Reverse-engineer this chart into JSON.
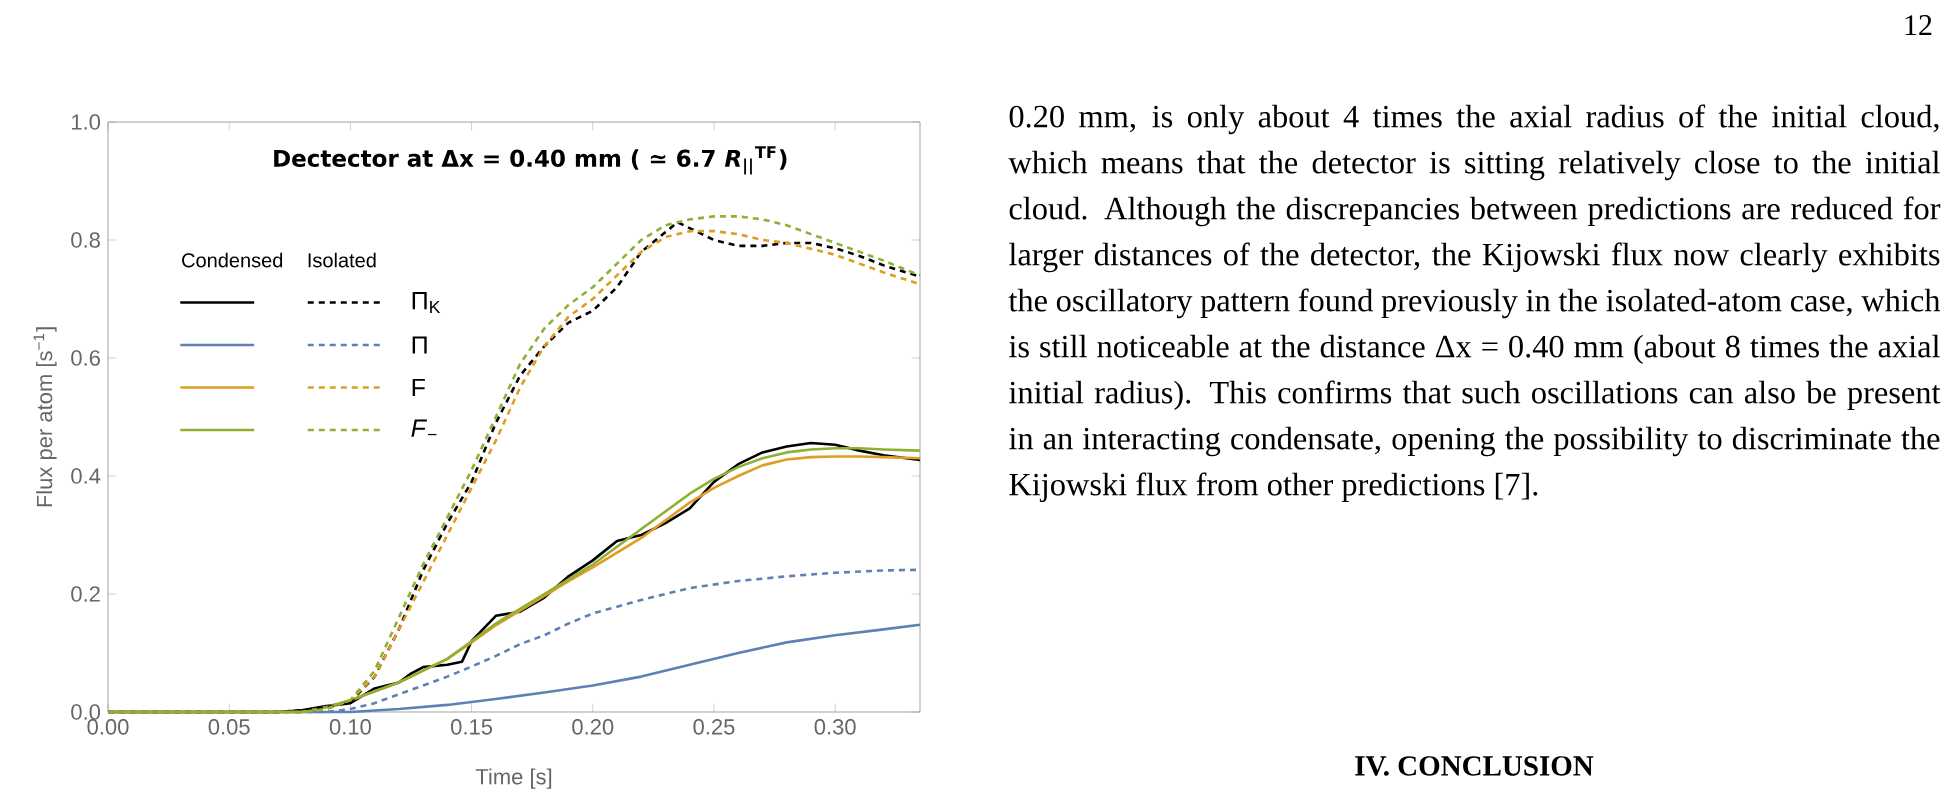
{
  "chart_data": {
    "type": "line",
    "title": "Dectector at Δx = 0.40 mm ( ≃ 6.7 *R*$_{||}$$^{TF}$)",
    "xlabel": "Time [s]",
    "ylabel": "Flux per atom [s$^{−1}$]",
    "xlim": [
      0,
      0.335
    ],
    "ylim": [
      0,
      1.0
    ],
    "xticks": [
      {
        "value": 0,
        "label": "0.00"
      },
      {
        "value": 0.05,
        "label": "0.05"
      },
      {
        "value": 0.1,
        "label": "0.10"
      },
      {
        "value": 0.15,
        "label": "0.15"
      },
      {
        "value": 0.2,
        "label": "0.20"
      },
      {
        "value": 0.25,
        "label": "0.25"
      },
      {
        "value": 0.3,
        "label": "0.30"
      }
    ],
    "yticks": [
      {
        "value": 0,
        "label": "0.0"
      },
      0.2,
      0.4,
      0.6,
      0.8,
      {
        "value": 1.0,
        "label": "1.0"
      }
    ],
    "legend": "top left",
    "series": [
      {
        "name": "Π$_{K}$",
        "color": "#000000",
        "line_style": "solid",
        "x": [
          0,
          0.07,
          0.08,
          0.09,
          0.1,
          0.11,
          0.12,
          0.125,
          0.13,
          0.14,
          0.146,
          0.15,
          0.16,
          0.17,
          0.18,
          0.19,
          0.2,
          0.21,
          0.22,
          0.23,
          0.24,
          0.25,
          0.26,
          0.27,
          0.28,
          0.29,
          0.3,
          0.31,
          0.32,
          0.335
        ],
        "values": [
          0,
          0,
          0.003,
          0.01,
          0.015,
          0.04,
          0.05,
          0.065,
          0.076,
          0.08,
          0.085,
          0.12,
          0.163,
          0.17,
          0.194,
          0.23,
          0.257,
          0.29,
          0.3,
          0.32,
          0.345,
          0.39,
          0.42,
          0.44,
          0.45,
          0.456,
          0.453,
          0.443,
          0.435,
          0.427
        ]
      },
      {
        "name": "Π",
        "color": "#5e81b5",
        "line_style": "solid",
        "x": [
          0,
          0.1,
          0.12,
          0.14,
          0.16,
          0.18,
          0.2,
          0.22,
          0.24,
          0.26,
          0.28,
          0.3,
          0.32,
          0.335
        ],
        "values": [
          0,
          0,
          0.005,
          0.012,
          0.022,
          0.033,
          0.045,
          0.06,
          0.08,
          0.1,
          0.118,
          0.13,
          0.14,
          0.148
        ]
      },
      {
        "name": "F",
        "color": "#e19c24",
        "line_style": "solid",
        "x": [
          0,
          0.08,
          0.09,
          0.1,
          0.11,
          0.12,
          0.13,
          0.14,
          0.15,
          0.16,
          0.17,
          0.18,
          0.19,
          0.2,
          0.21,
          0.22,
          0.23,
          0.24,
          0.25,
          0.26,
          0.27,
          0.28,
          0.29,
          0.3,
          0.31,
          0.32,
          0.335
        ],
        "values": [
          0,
          0,
          0.008,
          0.02,
          0.035,
          0.05,
          0.07,
          0.09,
          0.118,
          0.147,
          0.172,
          0.197,
          0.222,
          0.245,
          0.27,
          0.295,
          0.325,
          0.355,
          0.38,
          0.4,
          0.418,
          0.428,
          0.432,
          0.433,
          0.433,
          0.432,
          0.43
        ]
      },
      {
        "name": "*F*$_{−}$",
        "color": "#8fb032",
        "line_style": "solid",
        "x": [
          0,
          0.08,
          0.09,
          0.1,
          0.11,
          0.12,
          0.13,
          0.14,
          0.15,
          0.16,
          0.17,
          0.18,
          0.19,
          0.2,
          0.21,
          0.22,
          0.23,
          0.24,
          0.25,
          0.26,
          0.27,
          0.28,
          0.29,
          0.3,
          0.31,
          0.32,
          0.335
        ],
        "values": [
          0,
          0,
          0.008,
          0.02,
          0.035,
          0.05,
          0.07,
          0.09,
          0.12,
          0.15,
          0.175,
          0.2,
          0.225,
          0.25,
          0.28,
          0.31,
          0.34,
          0.37,
          0.395,
          0.415,
          0.43,
          0.44,
          0.445,
          0.447,
          0.447,
          0.445,
          0.443
        ]
      },
      {
        "color": "#000000",
        "line_style": "dashed",
        "x": [
          0,
          0.07,
          0.08,
          0.09,
          0.1,
          0.11,
          0.12,
          0.13,
          0.14,
          0.15,
          0.16,
          0.17,
          0.18,
          0.19,
          0.2,
          0.21,
          0.22,
          0.235,
          0.25,
          0.26,
          0.27,
          0.28,
          0.29,
          0.3,
          0.31,
          0.32,
          0.335
        ],
        "values": [
          0,
          0,
          0.003,
          0.008,
          0.017,
          0.06,
          0.14,
          0.24,
          0.32,
          0.39,
          0.49,
          0.57,
          0.62,
          0.66,
          0.68,
          0.72,
          0.78,
          0.83,
          0.8,
          0.79,
          0.79,
          0.795,
          0.795,
          0.786,
          0.773,
          0.757,
          0.738
        ]
      },
      {
        "color": "#5e81b5",
        "line_style": "dashed",
        "x": [
          0,
          0.09,
          0.1,
          0.11,
          0.12,
          0.13,
          0.14,
          0.15,
          0.16,
          0.17,
          0.18,
          0.19,
          0.2,
          0.22,
          0.24,
          0.26,
          0.28,
          0.3,
          0.32,
          0.335
        ],
        "values": [
          0,
          0,
          0.005,
          0.015,
          0.03,
          0.045,
          0.06,
          0.077,
          0.095,
          0.115,
          0.13,
          0.15,
          0.167,
          0.19,
          0.21,
          0.222,
          0.23,
          0.236,
          0.24,
          0.241
        ]
      },
      {
        "color": "#e19c24",
        "line_style": "dashed",
        "x": [
          0,
          0.08,
          0.09,
          0.1,
          0.11,
          0.12,
          0.13,
          0.14,
          0.15,
          0.16,
          0.17,
          0.18,
          0.19,
          0.2,
          0.21,
          0.22,
          0.23,
          0.24,
          0.25,
          0.26,
          0.27,
          0.28,
          0.29,
          0.3,
          0.31,
          0.32,
          0.335
        ],
        "values": [
          0,
          0,
          0.005,
          0.02,
          0.06,
          0.14,
          0.22,
          0.3,
          0.38,
          0.46,
          0.55,
          0.62,
          0.67,
          0.7,
          0.74,
          0.78,
          0.805,
          0.815,
          0.815,
          0.81,
          0.8,
          0.795,
          0.785,
          0.775,
          0.76,
          0.745,
          0.725
        ]
      },
      {
        "color": "#8fb032",
        "line_style": "dashed",
        "x": [
          0,
          0.08,
          0.09,
          0.1,
          0.11,
          0.12,
          0.13,
          0.14,
          0.15,
          0.16,
          0.17,
          0.18,
          0.19,
          0.2,
          0.21,
          0.22,
          0.23,
          0.24,
          0.25,
          0.26,
          0.27,
          0.28,
          0.29,
          0.3,
          0.31,
          0.32,
          0.335
        ],
        "values": [
          0,
          0,
          0.005,
          0.02,
          0.07,
          0.16,
          0.25,
          0.33,
          0.41,
          0.5,
          0.59,
          0.65,
          0.69,
          0.72,
          0.76,
          0.8,
          0.825,
          0.835,
          0.84,
          0.84,
          0.835,
          0.825,
          0.81,
          0.795,
          0.78,
          0.765,
          0.74
        ]
      }
    ],
    "annotations": [
      "Condensed",
      "Isolated",
      "12",
      "0.20 mm, is only about 4 times the axial radius of the initial cloud, which means that the detector is sitting relatively close to the initial cloud. Although the discrepancies between predictions are reduced for larger distances of the detector, the Kijowski flux now clearly exhibits the oscillatory pattern found previously in the isolated-atom case, which is still noticeable at the distance Δx = 0.40 mm (about 8 times the axial initial radius). This confirms that such oscillations can also be present in an interacting condensate, opening the possibility to discriminate the Kijowski flux from other predictions [7].",
      "IV. CONCLUSION"
    ]
  }
}
